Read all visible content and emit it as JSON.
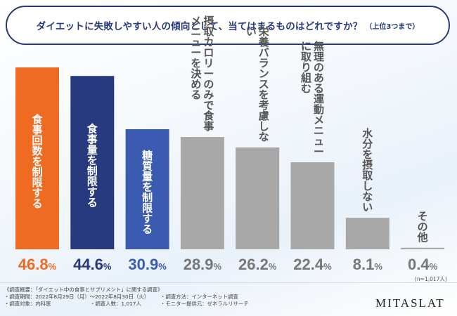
{
  "title": {
    "main": "ダイエットに失敗しやすい人の傾向として、当てはまるものはどれですか？",
    "sub": "（上位3つまで）"
  },
  "chart_data": {
    "type": "bar",
    "categories": [
      "食事回数を制限する",
      "食事量を制限する",
      "糖質量を制限する",
      "摂取カロリーのみで食事メニューを決める",
      "栄養バランスを考慮しない",
      "無理のある運動メニューに取り組む",
      "水分を摂取しない",
      "その他"
    ],
    "values": [
      46.8,
      44.6,
      30.9,
      28.9,
      26.2,
      22.4,
      8.1,
      0.4
    ],
    "value_labels": [
      "46.8",
      "44.6",
      "30.9",
      "28.9",
      "26.2",
      "22.4",
      "8.1",
      "0.4"
    ],
    "unit": "%",
    "ylim": [
      0,
      50
    ],
    "colors": [
      "#ef6b21",
      "#263a7d",
      "#3b5bb0",
      "#a8a8a8",
      "#a8a8a8",
      "#a8a8a8",
      "#a8a8a8",
      "#a8a8a8"
    ],
    "label_colors": [
      "#ef6b21",
      "#263a7d",
      "#3b5bb0",
      "#777777",
      "#777777",
      "#777777",
      "#777777",
      "#777777"
    ],
    "grid": false,
    "legend": "none"
  },
  "sample_note": "(n=1,017人)",
  "footer": {
    "heading": "《調査概要：「ダイエット中の食事とサプリメント」に関する調査》",
    "period": "・調査期間：2022年8月29日（月）～2022年8月30日（火）",
    "method": "・調査方法：インターネット調査",
    "target": "・調査対象：内科医",
    "count": "・調査人数：1,017人",
    "provider": "・モニター提供元：ゼネラルリサーチ"
  },
  "brand": "MITASLAT"
}
